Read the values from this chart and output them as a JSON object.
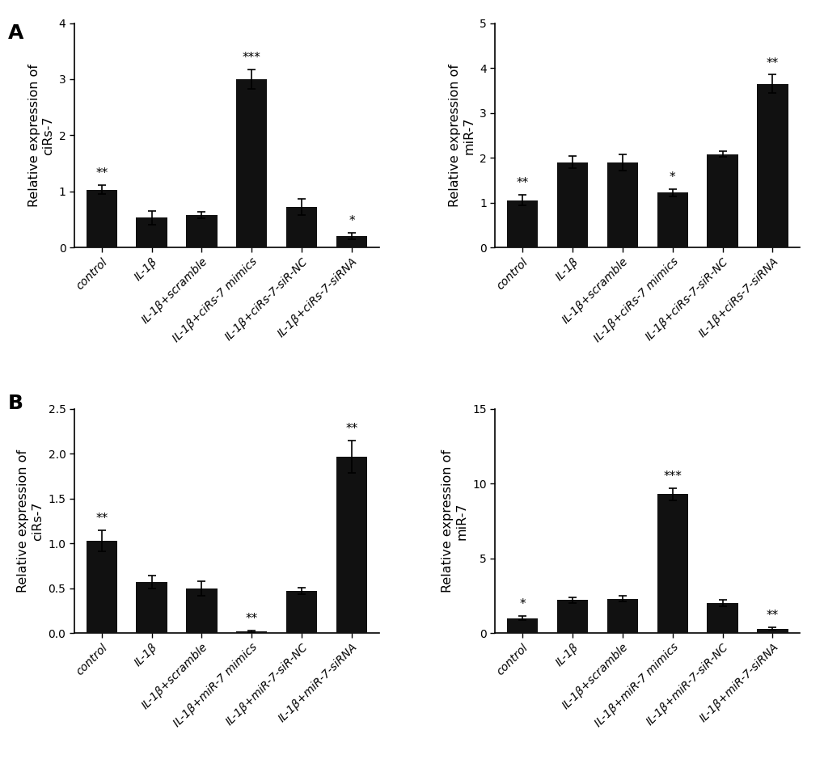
{
  "panel_A_left": {
    "ylabel": "Relative expression of\nciRs-7",
    "ylim": [
      0,
      4
    ],
    "yticks": [
      0,
      1,
      2,
      3,
      4
    ],
    "categories": [
      "control",
      "IL-1β",
      "IL-1β+scramble",
      "IL-1β+ciRs-7 mimics",
      "IL-1β+ciRs-7-siR-NC",
      "IL-1β+ciRs-7-siRNA"
    ],
    "values": [
      1.03,
      0.53,
      0.58,
      3.0,
      0.72,
      0.2
    ],
    "errors": [
      0.08,
      0.12,
      0.06,
      0.18,
      0.15,
      0.06
    ],
    "significance": [
      "**",
      "",
      "",
      "***",
      "",
      "*"
    ]
  },
  "panel_A_right": {
    "ylabel": "Relative expression of\nmiR-7",
    "ylim": [
      0,
      5
    ],
    "yticks": [
      0,
      1,
      2,
      3,
      4,
      5
    ],
    "categories": [
      "control",
      "IL-1β",
      "IL-1β+scramble",
      "IL-1β+ciRs-7 mimics",
      "IL-1β+ciRs-7-siR-NC",
      "IL-1β+ciRs-7-siRNA"
    ],
    "values": [
      1.05,
      1.9,
      1.9,
      1.22,
      2.08,
      3.65
    ],
    "errors": [
      0.12,
      0.13,
      0.18,
      0.08,
      0.06,
      0.2
    ],
    "significance": [
      "**",
      "",
      "",
      "*",
      "",
      "**"
    ]
  },
  "panel_B_left": {
    "ylabel": "Relative expression of\nciRs-7",
    "ylim": [
      0,
      2.5
    ],
    "yticks": [
      0.0,
      0.5,
      1.0,
      1.5,
      2.0,
      2.5
    ],
    "categories": [
      "control",
      "IL-1β",
      "IL-1β+scramble",
      "IL-1β+miR-7 mimics",
      "IL-1β+miR-7-siR-NC",
      "IL-1β+miR-7-siRNA"
    ],
    "values": [
      1.03,
      0.57,
      0.5,
      0.02,
      0.47,
      1.97
    ],
    "errors": [
      0.12,
      0.07,
      0.08,
      0.01,
      0.04,
      0.18
    ],
    "significance": [
      "**",
      "",
      "",
      "**",
      "",
      "**"
    ]
  },
  "panel_B_right": {
    "ylabel": "Relative expression of\nmiR-7",
    "ylim": [
      0,
      15
    ],
    "yticks": [
      0,
      5,
      10,
      15
    ],
    "categories": [
      "control",
      "IL-1β",
      "IL-1β+scramble",
      "IL-1β+miR-7 mimics",
      "IL-1β+miR-7-siR-NC",
      "IL-1β+miR-7-siRNA"
    ],
    "values": [
      1.0,
      2.2,
      2.3,
      9.3,
      2.0,
      0.3
    ],
    "errors": [
      0.12,
      0.18,
      0.18,
      0.4,
      0.2,
      0.08
    ],
    "significance": [
      "*",
      "",
      "",
      "***",
      "",
      "**"
    ]
  },
  "bar_color": "#111111",
  "bar_width": 0.62,
  "label_fontsize": 11.5,
  "tick_fontsize": 10,
  "sig_fontsize": 11,
  "panel_label_fontsize": 18,
  "background_color": "#ffffff"
}
